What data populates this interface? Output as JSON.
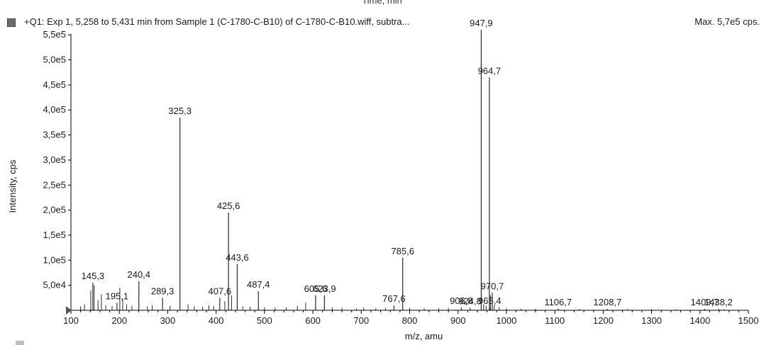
{
  "header": {
    "cut_title": "Time, min",
    "legend_text": "+Q1: Exp 1, 5,258 to 5,431 min from Sample 1 (C-1780-C-B10) of C-1780-C-B10.wiff, subtra...",
    "max_label": "Max. 5,7e5 cps."
  },
  "chart_data": {
    "type": "bar",
    "xlabel": "m/z, amu",
    "ylabel": "Intensity, cps",
    "xlim": [
      100,
      1500
    ],
    "ylim": [
      0,
      580000
    ],
    "xticks": [
      100,
      200,
      300,
      400,
      500,
      600,
      700,
      800,
      900,
      1000,
      1100,
      1200,
      1300,
      1400,
      1500
    ],
    "x_tick_labels": [
      "100",
      "200",
      "300",
      "400",
      "500",
      "600",
      "700",
      "800",
      "900",
      "1000",
      "1100",
      "1200",
      "1300",
      "1400",
      "1500"
    ],
    "yticks": [
      50000,
      100000,
      150000,
      200000,
      250000,
      300000,
      350000,
      400000,
      450000,
      500000,
      550000
    ],
    "y_tick_labels": [
      "5,0e4",
      "1,0e5",
      "1,5e5",
      "2,0e5",
      "2,5e5",
      "3,0e5",
      "3,5e5",
      "4,0e5",
      "4,5e5",
      "5,0e5",
      "5,5e5"
    ],
    "peaks": [
      {
        "mz": 145.3,
        "intensity": 55000,
        "label": "145,3"
      },
      {
        "mz": 195.1,
        "intensity": 15000,
        "label": "195,1"
      },
      {
        "mz": 240.4,
        "intensity": 58000,
        "label": "240,4"
      },
      {
        "mz": 289.3,
        "intensity": 25000,
        "label": "289,3"
      },
      {
        "mz": 325.3,
        "intensity": 385000,
        "label": "325,3"
      },
      {
        "mz": 407.6,
        "intensity": 25000,
        "label": "407,6"
      },
      {
        "mz": 425.6,
        "intensity": 195000,
        "label": "425,6"
      },
      {
        "mz": 443.6,
        "intensity": 92000,
        "label": "443,6"
      },
      {
        "mz": 487.4,
        "intensity": 38000,
        "label": "487,4"
      },
      {
        "mz": 605.6,
        "intensity": 30000,
        "label": "605,6"
      },
      {
        "mz": 623.9,
        "intensity": 30000,
        "label": "623,9"
      },
      {
        "mz": 767.6,
        "intensity": 10000,
        "label": "767,6"
      },
      {
        "mz": 785.6,
        "intensity": 105000,
        "label": "785,6"
      },
      {
        "mz": 906.8,
        "intensity": 6000,
        "label": "906,8"
      },
      {
        "mz": 924.8,
        "intensity": 5000,
        "label": "924,8"
      },
      {
        "mz": 947.9,
        "intensity": 560000,
        "label": "947,9"
      },
      {
        "mz": 964.7,
        "intensity": 465000,
        "label": "964,7"
      },
      {
        "mz": 965.4,
        "intensity": 6000,
        "label": "965,4"
      },
      {
        "mz": 970.7,
        "intensity": 35000,
        "label": "970,7"
      },
      {
        "mz": 1106.7,
        "intensity": 3000,
        "label": "1106,7"
      },
      {
        "mz": 1208.7,
        "intensity": 2500,
        "label": "1208,7"
      },
      {
        "mz": 1409.7,
        "intensity": 3000,
        "label": "1409,7"
      },
      {
        "mz": 1438.2,
        "intensity": 3000,
        "label": "1438,2"
      }
    ],
    "minor_peaks": [
      {
        "mz": 120,
        "intensity": 8000
      },
      {
        "mz": 128,
        "intensity": 12000
      },
      {
        "mz": 141,
        "intensity": 40000
      },
      {
        "mz": 148,
        "intensity": 50000
      },
      {
        "mz": 156,
        "intensity": 20000
      },
      {
        "mz": 163,
        "intensity": 32000
      },
      {
        "mz": 172,
        "intensity": 10000
      },
      {
        "mz": 185,
        "intensity": 9000
      },
      {
        "mz": 201,
        "intensity": 45000
      },
      {
        "mz": 207,
        "intensity": 22000
      },
      {
        "mz": 215,
        "intensity": 12000
      },
      {
        "mz": 226,
        "intensity": 9000
      },
      {
        "mz": 258,
        "intensity": 8000
      },
      {
        "mz": 268,
        "intensity": 10000
      },
      {
        "mz": 305,
        "intensity": 9000
      },
      {
        "mz": 342,
        "intensity": 12000
      },
      {
        "mz": 355,
        "intensity": 8000
      },
      {
        "mz": 372,
        "intensity": 7000
      },
      {
        "mz": 385,
        "intensity": 10000
      },
      {
        "mz": 395,
        "intensity": 9000
      },
      {
        "mz": 418,
        "intensity": 18000
      },
      {
        "mz": 432,
        "intensity": 30000
      },
      {
        "mz": 455,
        "intensity": 8000
      },
      {
        "mz": 470,
        "intensity": 7000
      },
      {
        "mz": 500,
        "intensity": 6000
      },
      {
        "mz": 522,
        "intensity": 5000
      },
      {
        "mz": 545,
        "intensity": 6000
      },
      {
        "mz": 568,
        "intensity": 9000
      },
      {
        "mz": 585,
        "intensity": 15000
      },
      {
        "mz": 640,
        "intensity": 6000
      },
      {
        "mz": 660,
        "intensity": 5000
      },
      {
        "mz": 690,
        "intensity": 4000
      },
      {
        "mz": 705,
        "intensity": 5000
      },
      {
        "mz": 730,
        "intensity": 4000
      },
      {
        "mz": 750,
        "intensity": 5000
      },
      {
        "mz": 800,
        "intensity": 5000
      },
      {
        "mz": 830,
        "intensity": 4000
      },
      {
        "mz": 860,
        "intensity": 4000
      },
      {
        "mz": 880,
        "intensity": 5000
      },
      {
        "mz": 953,
        "intensity": 12000
      },
      {
        "mz": 958,
        "intensity": 9000
      },
      {
        "mz": 967,
        "intensity": 30000
      },
      {
        "mz": 975,
        "intensity": 10000
      },
      {
        "mz": 985,
        "intensity": 6000
      },
      {
        "mz": 1000,
        "intensity": 4000
      },
      {
        "mz": 1030,
        "intensity": 3000
      },
      {
        "mz": 1060,
        "intensity": 3000
      },
      {
        "mz": 1150,
        "intensity": 2500
      },
      {
        "mz": 1250,
        "intensity": 2500
      },
      {
        "mz": 1300,
        "intensity": 2000
      },
      {
        "mz": 1350,
        "intensity": 2000
      },
      {
        "mz": 1450,
        "intensity": 2000
      }
    ],
    "colors": {
      "peak": "#2a2a2a",
      "axis": "#000000",
      "text": "#1a1a1a"
    }
  }
}
